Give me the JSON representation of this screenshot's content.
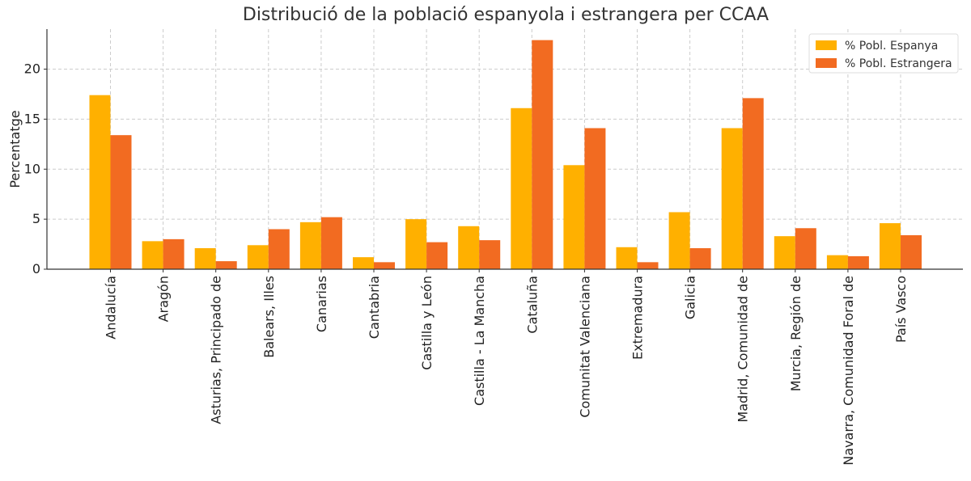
{
  "chart_data": {
    "type": "bar",
    "title": "Distribució de la població espanyola i estrangera per CCAA",
    "xlabel": "",
    "ylabel": "Percentatge",
    "ylim": [
      0,
      24
    ],
    "yticks": [
      0,
      5,
      10,
      15,
      20
    ],
    "grid": true,
    "legend_position": "top-right",
    "categories": [
      "Andalucía",
      "Aragón",
      "Asturias, Principado de",
      "Balears, Illes",
      "Canarias",
      "Cantabria",
      "Castilla y León",
      "Castilla - La Mancha",
      "Cataluña",
      "Comunitat Valenciana",
      "Extremadura",
      "Galicia",
      "Madrid, Comunidad de",
      "Murcia, Región de",
      "Navarra, Comunidad Foral de",
      "País Vasco"
    ],
    "series": [
      {
        "name": "% Pobl. Espanya",
        "color": "#FFB000",
        "values": [
          17.4,
          2.8,
          2.1,
          2.4,
          4.7,
          1.2,
          5.0,
          4.3,
          16.1,
          10.4,
          2.2,
          5.7,
          14.1,
          3.3,
          1.4,
          4.6
        ]
      },
      {
        "name": "% Pobl. Estrangera",
        "color": "#F26B21",
        "values": [
          13.4,
          3.0,
          0.8,
          4.0,
          5.2,
          0.7,
          2.7,
          2.9,
          22.9,
          14.1,
          0.7,
          2.1,
          17.1,
          4.1,
          1.3,
          3.4
        ]
      }
    ]
  }
}
